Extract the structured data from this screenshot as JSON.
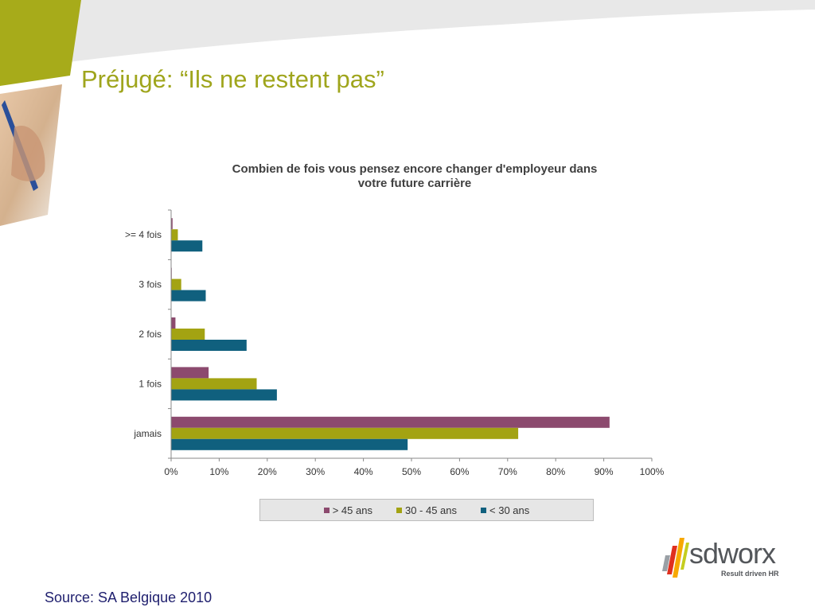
{
  "slide": {
    "title": "Préjugé: “Ils ne restent pas”",
    "source": "Source: SA Belgique 2010"
  },
  "logo": {
    "name": "sdworx",
    "tagline": "Result driven HR"
  },
  "colors": {
    "title": "#9fa51c",
    "series_over_45": "#8c4a6e",
    "series_30_45": "#a3a312",
    "series_under_30": "#10607e"
  },
  "chart_data": {
    "type": "bar",
    "orientation": "horizontal",
    "title_lines": [
      "Combien de fois vous pensez encore changer d'employeur dans",
      "votre future carrière"
    ],
    "categories": [
      ">= 4 fois",
      "3 fois",
      "2 fois",
      "1 fois",
      "jamais"
    ],
    "series": [
      {
        "name": "> 45 ans",
        "color": "#8c4a6e",
        "values": [
          0.3,
          0.1,
          0.9,
          7.8,
          91.2
        ]
      },
      {
        "name": "30 - 45 ans",
        "color": "#a3a312",
        "values": [
          1.4,
          2.1,
          7.0,
          17.8,
          72.2
        ]
      },
      {
        "name": "< 30 ans",
        "color": "#10607e",
        "values": [
          6.5,
          7.2,
          15.7,
          22.0,
          49.2
        ]
      }
    ],
    "xlim": [
      0,
      100
    ],
    "xticks": [
      "0%",
      "10%",
      "20%",
      "30%",
      "40%",
      "50%",
      "60%",
      "70%",
      "80%",
      "90%",
      "100%"
    ],
    "legend": "bottom",
    "grid": false
  }
}
